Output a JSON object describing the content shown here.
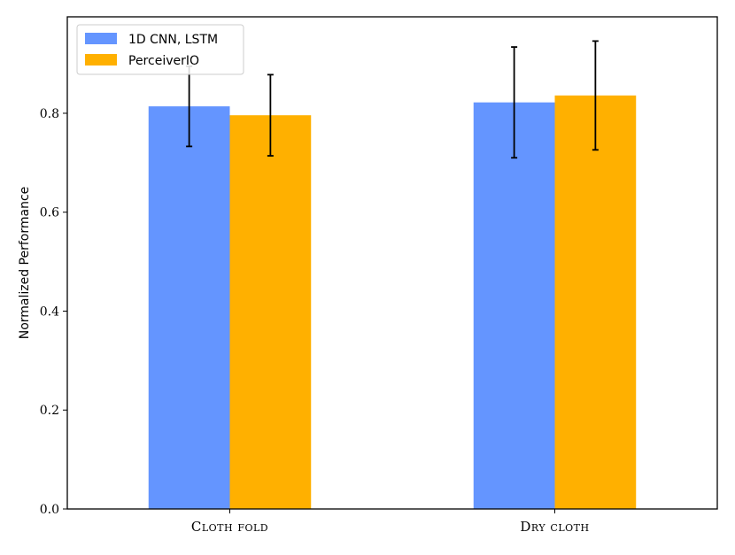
{
  "chart_data": {
    "type": "bar",
    "categories": [
      "Cloth fold",
      "Dry cloth"
    ],
    "series": [
      {
        "name": "1D CNN, LSTM",
        "color": "#6495ff",
        "values": [
          0.814,
          0.822
        ],
        "error": [
          0.081,
          0.112
        ]
      },
      {
        "name": "PerceiverIO",
        "color": "#ffb000",
        "values": [
          0.796,
          0.836
        ],
        "error": [
          0.082,
          0.11
        ]
      }
    ],
    "title": "",
    "xlabel": "",
    "ylabel": "Normalized Performance",
    "ylim": [
      0,
      0.995
    ],
    "yticks": [
      0.0,
      0.2,
      0.4,
      0.6,
      0.8
    ],
    "ytick_labels": [
      "0.0",
      "0.2",
      "0.4",
      "0.6",
      "0.8"
    ],
    "grid": false,
    "legend_position": "upper left"
  }
}
